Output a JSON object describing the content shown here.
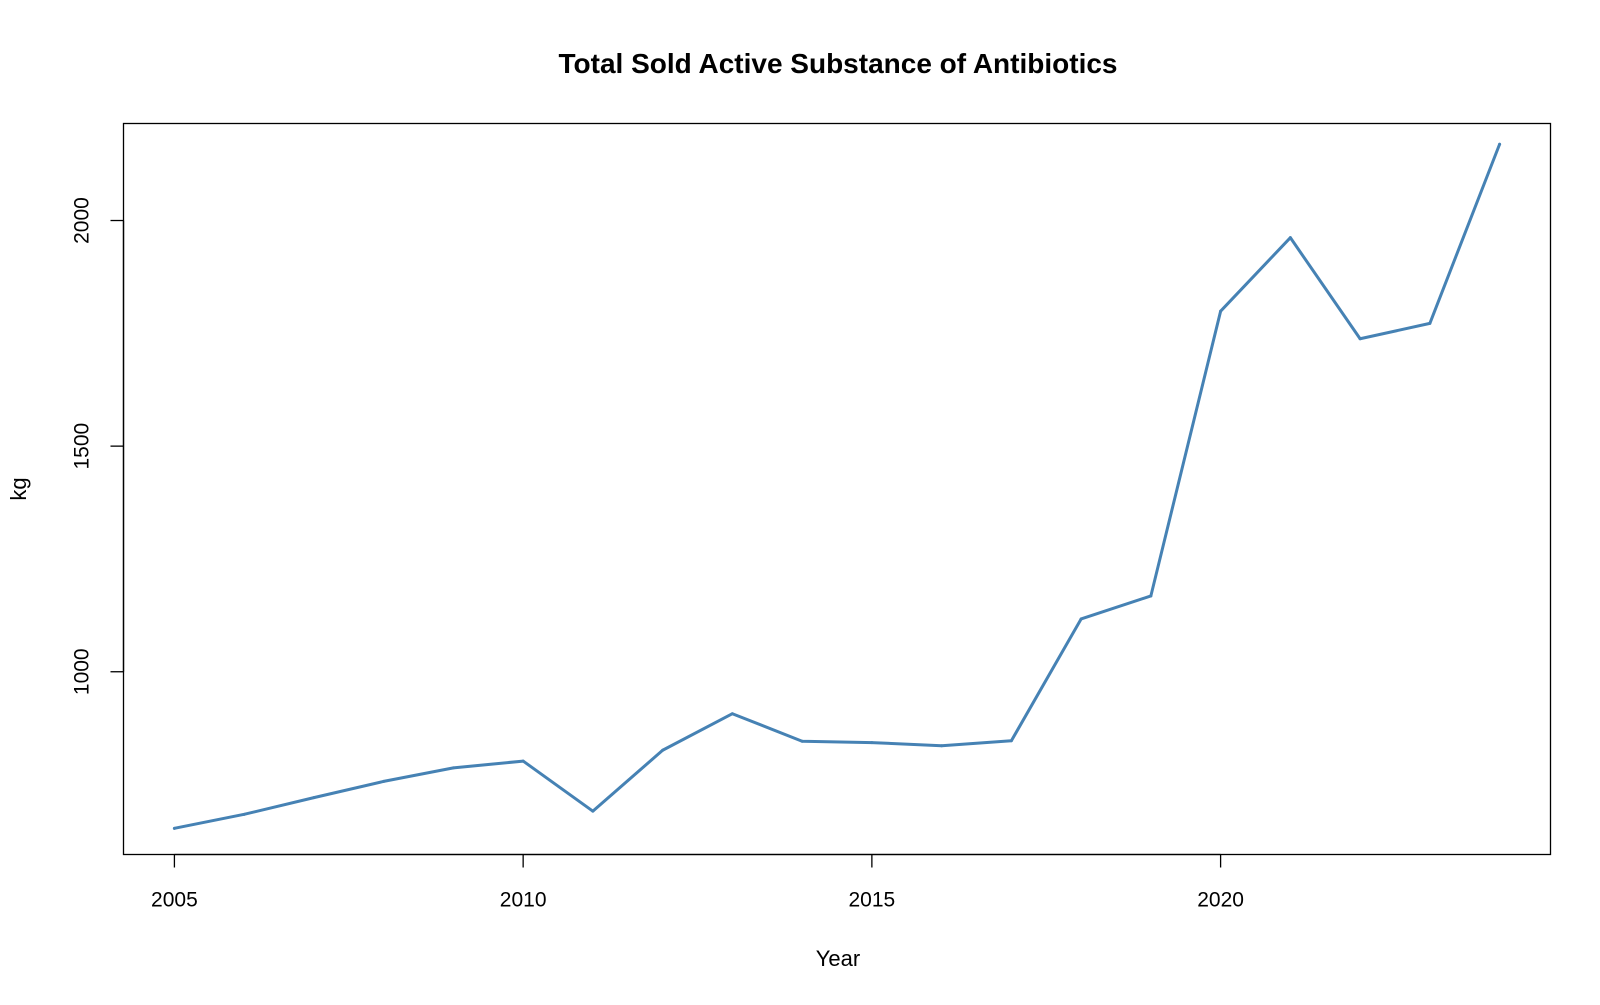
{
  "chart_data": {
    "type": "line",
    "title": "Total Sold Active Substance of Antibiotics",
    "xlabel": "Year",
    "ylabel": "kg",
    "xlim": [
      2004.27,
      2024.73
    ],
    "ylim": [
      595,
      2215
    ],
    "x_ticks": [
      2005,
      2010,
      2015,
      2020
    ],
    "y_ticks": [
      1000,
      1500,
      2000
    ],
    "grid": false,
    "legend": "none",
    "series": [
      {
        "color": "#4682B4",
        "x": [
          2005,
          2006,
          2007,
          2008,
          2009,
          2010,
          2011,
          2012,
          2013,
          2014,
          2015,
          2016,
          2017,
          2018,
          2019,
          2020,
          2021,
          2022,
          2023,
          2024
        ],
        "y": [
          653,
          684,
          721,
          757,
          787,
          802,
          691,
          826,
          907,
          846,
          843,
          836,
          847,
          1117,
          1168,
          1799,
          1962,
          1738,
          1772,
          2169
        ]
      }
    ]
  }
}
